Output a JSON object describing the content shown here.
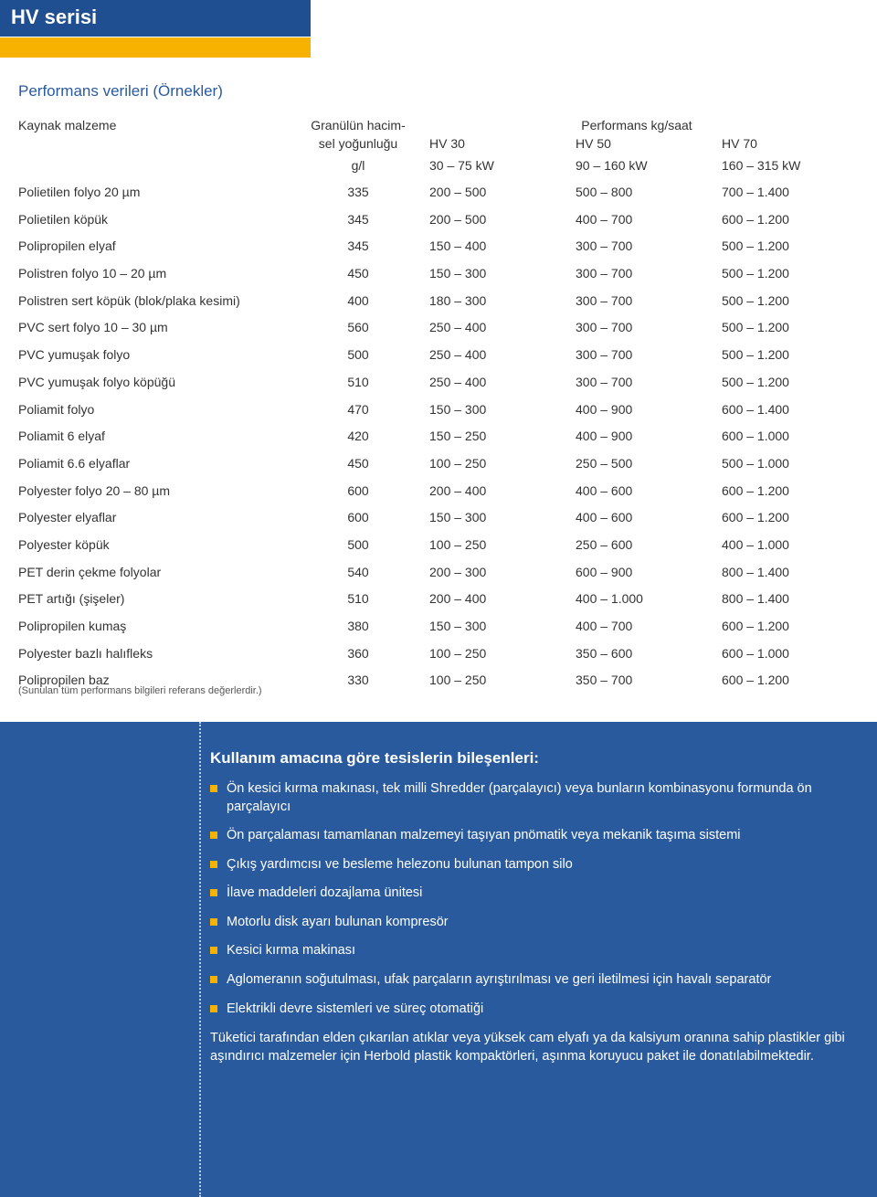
{
  "header": {
    "series": "HV serisi",
    "subtitle": "Performans verileri (Örnekler)"
  },
  "table": {
    "columns": {
      "c1": "Kaynak malzeme",
      "c2a": "Granülün hacim-",
      "c2b": "sel yoğunluğu",
      "c2c": "g/l",
      "perf_head": "Performans kg/saat",
      "hv30a": "HV 30",
      "hv30b": "30 – 75 kW",
      "hv50a": "HV 50",
      "hv50b": "90 – 160 kW",
      "hv70a": "HV 70",
      "hv70b": "160 – 315 kW"
    },
    "rows": [
      {
        "m": "Polietilen folyo 20 µm",
        "d": "335",
        "a": "200 – 500",
        "b": "500 – 800",
        "c": "700 – 1.400"
      },
      {
        "m": "Polietilen köpük",
        "d": "345",
        "a": "200 – 500",
        "b": "400 – 700",
        "c": "600 – 1.200"
      },
      {
        "m": "Polipropilen elyaf",
        "d": "345",
        "a": "150 – 400",
        "b": "300 – 700",
        "c": "500 – 1.200"
      },
      {
        "m": "Polistren folyo 10 – 20 µm",
        "d": "450",
        "a": "150 – 300",
        "b": "300 – 700",
        "c": "500 – 1.200"
      },
      {
        "m": "Polistren sert köpük (blok/plaka kesimi)",
        "d": "400",
        "a": "180 – 300",
        "b": "300 – 700",
        "c": "500 – 1.200"
      },
      {
        "m": "PVC sert folyo 10 – 30 µm",
        "d": "560",
        "a": "250 – 400",
        "b": "300 – 700",
        "c": "500 – 1.200"
      },
      {
        "m": "PVC yumuşak folyo",
        "d": "500",
        "a": "250 – 400",
        "b": "300 – 700",
        "c": "500 – 1.200"
      },
      {
        "m": "PVC yumuşak folyo köpüğü",
        "d": "510",
        "a": "250 – 400",
        "b": "300 – 700",
        "c": "500 – 1.200"
      },
      {
        "m": "Poliamit folyo",
        "d": "470",
        "a": "150 – 300",
        "b": "400 – 900",
        "c": "600 – 1.400"
      },
      {
        "m": "Poliamit 6 elyaf",
        "d": "420",
        "a": "150 – 250",
        "b": "400 – 900",
        "c": "600 – 1.000"
      },
      {
        "m": "Poliamit 6.6 elyaflar",
        "d": "450",
        "a": "100 – 250",
        "b": "250 – 500",
        "c": "500 – 1.000"
      },
      {
        "m": "Polyester folyo 20 – 80 µm",
        "d": "600",
        "a": "200 – 400",
        "b": "400 – 600",
        "c": "600 – 1.200"
      },
      {
        "m": "Polyester elyaflar",
        "d": "600",
        "a": "150 – 300",
        "b": "400 – 600",
        "c": "600 – 1.200"
      },
      {
        "m": "Polyester köpük",
        "d": "500",
        "a": "100 – 250",
        "b": "250 – 600",
        "c": "400 – 1.000"
      },
      {
        "m": "PET derin çekme folyolar",
        "d": "540",
        "a": "200 – 300",
        "b": "600 – 900",
        "c": "800 – 1.400"
      },
      {
        "m": "PET artığı (şişeler)",
        "d": "510",
        "a": "200 – 400",
        "b": "400 – 1.000",
        "c": "800 – 1.400"
      },
      {
        "m": "Polipropilen kumaş",
        "d": "380",
        "a": "150 – 300",
        "b": "400 – 700",
        "c": "600 – 1.200"
      },
      {
        "m": "Polyester bazlı halıfleks",
        "d": "360",
        "a": "100 – 250",
        "b": "350 – 600",
        "c": "600 – 1.000"
      },
      {
        "m": "Polipropilen baz",
        "d": "330",
        "a": "100 – 250",
        "b": "350 – 700",
        "c": "600 – 1.200"
      }
    ]
  },
  "footnote": "(Sunulan tüm performans bilgileri referans değerlerdir.)",
  "blue": {
    "title": "Kullanım amacına göre tesislerin bileşenleri:",
    "items": [
      "Ön kesici kırma makınası, tek milli Shredder (parçalayıcı) veya bunların kombinasyonu formunda ön parçalayıcı",
      "Ön parçalaması tamamlanan malzemeyi taşıyan pnömatik veya mekanik taşıma sistemi",
      "Çıkış yardımcısı ve besleme helezonu bulunan tampon silo",
      "İlave maddeleri dozajlama ünitesi",
      "Motorlu disk ayarı bulunan kompresör",
      "Kesici kırma makinası",
      "Aglomeranın soğutulması, ufak parçaların ayrıştırılması ve geri iletilmesi için havalı separatör",
      "Elektrikli devre sistemleri ve süreç otomatiği"
    ],
    "para": "Tüketici tarafından elden çıkarılan atıklar veya yüksek cam elyafı ya da kalsiyum oranına sahip plastikler gibi aşındırıcı malzemeler için Herbold plastik kompaktörleri, aşınma koruyucu paket ile donatılabilmektedir."
  },
  "colors": {
    "blue": "#2a5a9e",
    "darkblue": "#1f4f91",
    "yellow": "#f7b200"
  }
}
